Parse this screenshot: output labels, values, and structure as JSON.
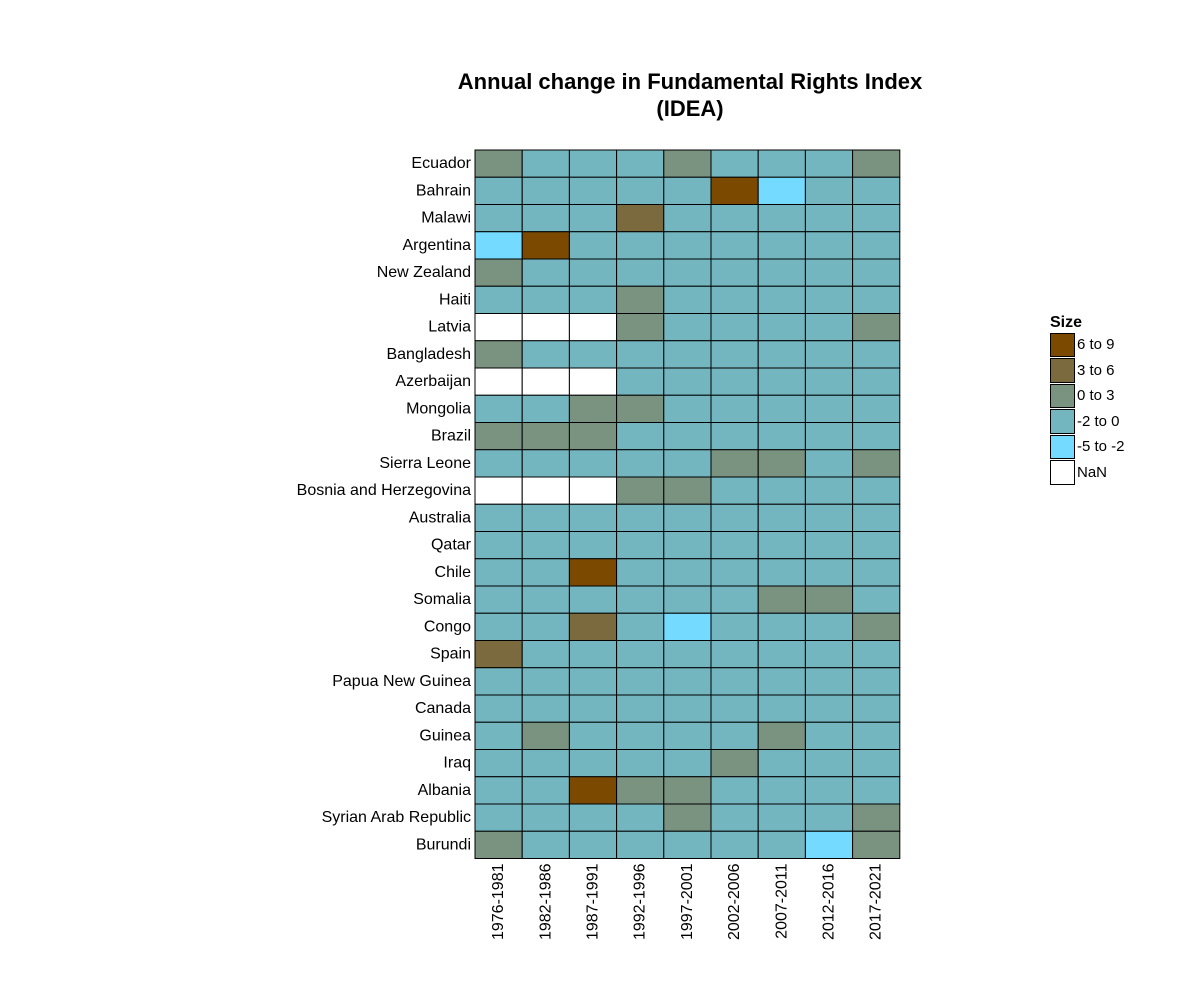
{
  "chart_data": {
    "type": "heatmap",
    "title_lines": [
      "Annual change in Fundamental Rights Index",
      "(IDEA)"
    ],
    "xlabel": "",
    "ylabel": "",
    "x": [
      "1976-1981",
      "1982-1986",
      "1987-1991",
      "1992-1996",
      "1997-2001",
      "2002-2006",
      "2007-2011",
      "2012-2016",
      "2017-2021"
    ],
    "y": [
      "Ecuador",
      "Bahrain",
      "Malawi",
      "Argentina",
      "New Zealand",
      "Haiti",
      "Latvia",
      "Bangladesh",
      "Azerbaijan",
      "Mongolia",
      "Brazil",
      "Sierra Leone",
      "Bosnia and Herzegovina",
      "Australia",
      "Qatar",
      "Chile",
      "Somalia",
      "Congo",
      "Spain",
      "Papua New Guinea",
      "Canada",
      "Guinea",
      "Iraq",
      "Albania",
      "Syrian Arab Republic",
      "Burundi"
    ],
    "legend": {
      "title": "Size",
      "placement": "right",
      "bins": [
        {
          "label": "6 to 9",
          "color": "#7b4a00"
        },
        {
          "label": "3 to 6",
          "color": "#7a6a3e"
        },
        {
          "label": "0 to 3",
          "color": "#7a9280"
        },
        {
          "label": "-2 to 0",
          "color": "#74b6c0"
        },
        {
          "label": "-5 to -2",
          "color": "#74daff"
        },
        {
          "label": "NaN",
          "color": "#ffffff"
        }
      ]
    },
    "cells": [
      [
        "0 to 3",
        "-2 to 0",
        "-2 to 0",
        "-2 to 0",
        "0 to 3",
        "-2 to 0",
        "-2 to 0",
        "-2 to 0",
        "0 to 3"
      ],
      [
        "-2 to 0",
        "-2 to 0",
        "-2 to 0",
        "-2 to 0",
        "-2 to 0",
        "6 to 9",
        "-5 to -2",
        "-2 to 0",
        "-2 to 0"
      ],
      [
        "-2 to 0",
        "-2 to 0",
        "-2 to 0",
        "3 to 6",
        "-2 to 0",
        "-2 to 0",
        "-2 to 0",
        "-2 to 0",
        "-2 to 0"
      ],
      [
        "-5 to -2",
        "6 to 9",
        "-2 to 0",
        "-2 to 0",
        "-2 to 0",
        "-2 to 0",
        "-2 to 0",
        "-2 to 0",
        "-2 to 0"
      ],
      [
        "0 to 3",
        "-2 to 0",
        "-2 to 0",
        "-2 to 0",
        "-2 to 0",
        "-2 to 0",
        "-2 to 0",
        "-2 to 0",
        "-2 to 0"
      ],
      [
        "-2 to 0",
        "-2 to 0",
        "-2 to 0",
        "0 to 3",
        "-2 to 0",
        "-2 to 0",
        "-2 to 0",
        "-2 to 0",
        "-2 to 0"
      ],
      [
        "NaN",
        "NaN",
        "NaN",
        "0 to 3",
        "-2 to 0",
        "-2 to 0",
        "-2 to 0",
        "-2 to 0",
        "0 to 3"
      ],
      [
        "0 to 3",
        "-2 to 0",
        "-2 to 0",
        "-2 to 0",
        "-2 to 0",
        "-2 to 0",
        "-2 to 0",
        "-2 to 0",
        "-2 to 0"
      ],
      [
        "NaN",
        "NaN",
        "NaN",
        "-2 to 0",
        "-2 to 0",
        "-2 to 0",
        "-2 to 0",
        "-2 to 0",
        "-2 to 0"
      ],
      [
        "-2 to 0",
        "-2 to 0",
        "0 to 3",
        "0 to 3",
        "-2 to 0",
        "-2 to 0",
        "-2 to 0",
        "-2 to 0",
        "-2 to 0"
      ],
      [
        "0 to 3",
        "0 to 3",
        "0 to 3",
        "-2 to 0",
        "-2 to 0",
        "-2 to 0",
        "-2 to 0",
        "-2 to 0",
        "-2 to 0"
      ],
      [
        "-2 to 0",
        "-2 to 0",
        "-2 to 0",
        "-2 to 0",
        "-2 to 0",
        "0 to 3",
        "0 to 3",
        "-2 to 0",
        "0 to 3"
      ],
      [
        "NaN",
        "NaN",
        "NaN",
        "0 to 3",
        "0 to 3",
        "-2 to 0",
        "-2 to 0",
        "-2 to 0",
        "-2 to 0"
      ],
      [
        "-2 to 0",
        "-2 to 0",
        "-2 to 0",
        "-2 to 0",
        "-2 to 0",
        "-2 to 0",
        "-2 to 0",
        "-2 to 0",
        "-2 to 0"
      ],
      [
        "-2 to 0",
        "-2 to 0",
        "-2 to 0",
        "-2 to 0",
        "-2 to 0",
        "-2 to 0",
        "-2 to 0",
        "-2 to 0",
        "-2 to 0"
      ],
      [
        "-2 to 0",
        "-2 to 0",
        "6 to 9",
        "-2 to 0",
        "-2 to 0",
        "-2 to 0",
        "-2 to 0",
        "-2 to 0",
        "-2 to 0"
      ],
      [
        "-2 to 0",
        "-2 to 0",
        "-2 to 0",
        "-2 to 0",
        "-2 to 0",
        "-2 to 0",
        "0 to 3",
        "0 to 3",
        "-2 to 0"
      ],
      [
        "-2 to 0",
        "-2 to 0",
        "3 to 6",
        "-2 to 0",
        "-5 to -2",
        "-2 to 0",
        "-2 to 0",
        "-2 to 0",
        "0 to 3"
      ],
      [
        "3 to 6",
        "-2 to 0",
        "-2 to 0",
        "-2 to 0",
        "-2 to 0",
        "-2 to 0",
        "-2 to 0",
        "-2 to 0",
        "-2 to 0"
      ],
      [
        "-2 to 0",
        "-2 to 0",
        "-2 to 0",
        "-2 to 0",
        "-2 to 0",
        "-2 to 0",
        "-2 to 0",
        "-2 to 0",
        "-2 to 0"
      ],
      [
        "-2 to 0",
        "-2 to 0",
        "-2 to 0",
        "-2 to 0",
        "-2 to 0",
        "-2 to 0",
        "-2 to 0",
        "-2 to 0",
        "-2 to 0"
      ],
      [
        "-2 to 0",
        "0 to 3",
        "-2 to 0",
        "-2 to 0",
        "-2 to 0",
        "-2 to 0",
        "0 to 3",
        "-2 to 0",
        "-2 to 0"
      ],
      [
        "-2 to 0",
        "-2 to 0",
        "-2 to 0",
        "-2 to 0",
        "-2 to 0",
        "0 to 3",
        "-2 to 0",
        "-2 to 0",
        "-2 to 0"
      ],
      [
        "-2 to 0",
        "-2 to 0",
        "6 to 9",
        "0 to 3",
        "0 to 3",
        "-2 to 0",
        "-2 to 0",
        "-2 to 0",
        "-2 to 0"
      ],
      [
        "-2 to 0",
        "-2 to 0",
        "-2 to 0",
        "-2 to 0",
        "0 to 3",
        "-2 to 0",
        "-2 to 0",
        "-2 to 0",
        "0 to 3"
      ],
      [
        "0 to 3",
        "-2 to 0",
        "-2 to 0",
        "-2 to 0",
        "-2 to 0",
        "-2 to 0",
        "-2 to 0",
        "-5 to -2",
        "0 to 3"
      ]
    ]
  }
}
